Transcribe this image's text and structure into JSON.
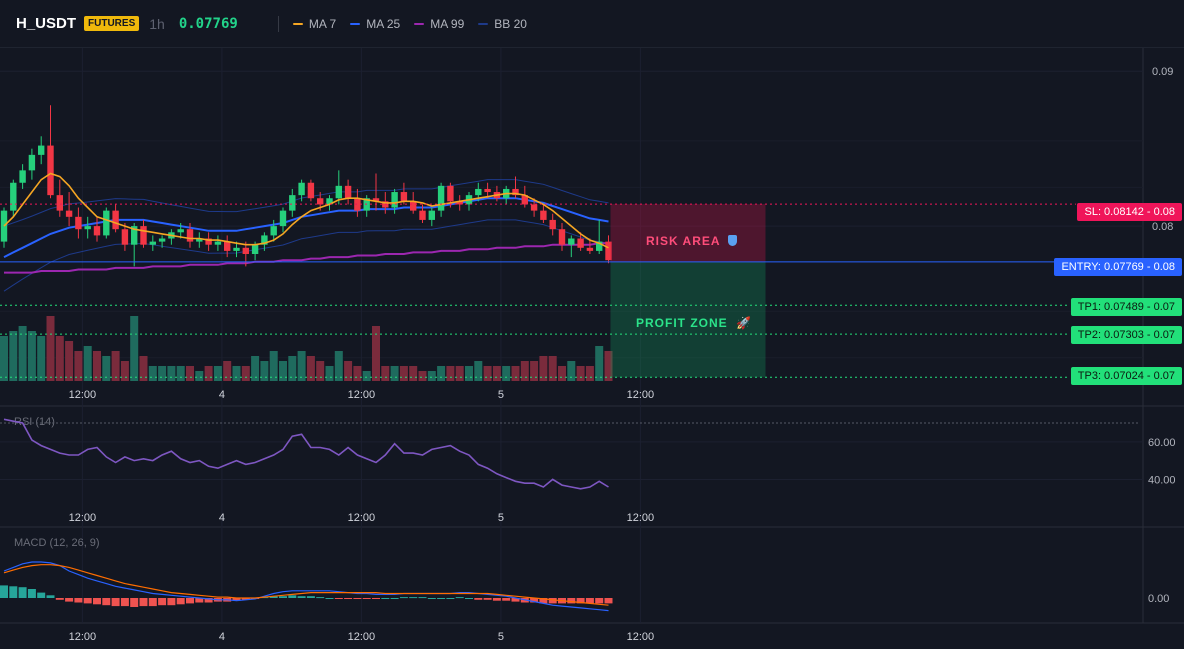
{
  "header": {
    "symbol": "H_USDT",
    "badge": "FUTURES",
    "timeframe": "1h",
    "price": "0.07769",
    "indicators": [
      {
        "label": "MA 7",
        "color": "#f5a623"
      },
      {
        "label": "MA 25",
        "color": "#2962ff"
      },
      {
        "label": "MA 99",
        "color": "#9c27b0"
      },
      {
        "label": "BB 20",
        "color": "#1e3a8a"
      }
    ]
  },
  "levels": {
    "sl": {
      "label": "SL: 0.08142 - 0.08",
      "value": 0.08142,
      "color": "#f0155a"
    },
    "entry": {
      "label": "ENTRY: 0.07769 - 0.08",
      "value": 0.07769,
      "color": "#2962ff"
    },
    "tp": [
      {
        "label": "TP1: 0.07489 - 0.07",
        "value": 0.07489
      },
      {
        "label": "TP2: 0.07303 - 0.07",
        "value": 0.07303
      },
      {
        "label": "TP3: 0.07024 - 0.07",
        "value": 0.07024
      }
    ],
    "tp_color": "#22e07a"
  },
  "zones": {
    "risk": "RISK AREA",
    "profit": "PROFIT ZONE"
  },
  "rsi": {
    "label": "RSI (14)",
    "ticks": [
      "60.00",
      "40.00"
    ],
    "ylim": [
      28,
      78
    ]
  },
  "macd": {
    "label": "MACD (12, 26, 9)",
    "ticks": [
      "0.00"
    ]
  },
  "chart_data": [
    {
      "type": "candlestick",
      "title": "H_USDT",
      "y_ticks": [
        "0.09",
        "0.08"
      ],
      "ylim": [
        0.07,
        0.0915
      ],
      "x_labels": [
        {
          "text": "12:00",
          "index": 8
        },
        {
          "text": "4",
          "index": 23
        },
        {
          "text": "12:00",
          "index": 38
        },
        {
          "text": "5",
          "index": 53
        },
        {
          "text": "12:00",
          "index": 68
        }
      ],
      "candles": [
        [
          0.079,
          0.0812,
          0.0786,
          0.081
        ],
        [
          0.081,
          0.083,
          0.0806,
          0.0828
        ],
        [
          0.0828,
          0.084,
          0.0824,
          0.0836
        ],
        [
          0.0836,
          0.085,
          0.083,
          0.0846
        ],
        [
          0.0846,
          0.0858,
          0.084,
          0.0852
        ],
        [
          0.0852,
          0.0878,
          0.0818,
          0.082
        ],
        [
          0.082,
          0.083,
          0.0806,
          0.081
        ],
        [
          0.081,
          0.0822,
          0.08,
          0.0806
        ],
        [
          0.0806,
          0.0812,
          0.0792,
          0.0798
        ],
        [
          0.0798,
          0.0806,
          0.0792,
          0.08
        ],
        [
          0.08,
          0.0806,
          0.079,
          0.0794
        ],
        [
          0.0794,
          0.0812,
          0.0792,
          0.081
        ],
        [
          0.081,
          0.0814,
          0.0796,
          0.0798
        ],
        [
          0.0798,
          0.0802,
          0.0784,
          0.0788
        ],
        [
          0.0788,
          0.0802,
          0.0774,
          0.08
        ],
        [
          0.08,
          0.0804,
          0.0786,
          0.0788
        ],
        [
          0.0788,
          0.0794,
          0.0784,
          0.079
        ],
        [
          0.079,
          0.0794,
          0.0786,
          0.0792
        ],
        [
          0.0792,
          0.0798,
          0.0788,
          0.0796
        ],
        [
          0.0796,
          0.0802,
          0.0792,
          0.0798
        ],
        [
          0.0798,
          0.0802,
          0.0786,
          0.079
        ],
        [
          0.079,
          0.0796,
          0.0786,
          0.0792
        ],
        [
          0.0792,
          0.0796,
          0.0784,
          0.0788
        ],
        [
          0.0788,
          0.0794,
          0.0784,
          0.079
        ],
        [
          0.079,
          0.0794,
          0.078,
          0.0784
        ],
        [
          0.0784,
          0.079,
          0.078,
          0.0786
        ],
        [
          0.0786,
          0.079,
          0.0774,
          0.0782
        ],
        [
          0.0782,
          0.079,
          0.0778,
          0.0788
        ],
        [
          0.0788,
          0.0796,
          0.0784,
          0.0794
        ],
        [
          0.0794,
          0.0804,
          0.079,
          0.08
        ],
        [
          0.08,
          0.0812,
          0.0796,
          0.081
        ],
        [
          0.081,
          0.0824,
          0.0806,
          0.082
        ],
        [
          0.082,
          0.083,
          0.0816,
          0.0828
        ],
        [
          0.0828,
          0.083,
          0.0816,
          0.0818
        ],
        [
          0.0818,
          0.0822,
          0.081,
          0.0814
        ],
        [
          0.0814,
          0.082,
          0.081,
          0.0818
        ],
        [
          0.0818,
          0.0836,
          0.0814,
          0.0826
        ],
        [
          0.0826,
          0.083,
          0.0814,
          0.0818
        ],
        [
          0.0818,
          0.0824,
          0.0806,
          0.081
        ],
        [
          0.081,
          0.082,
          0.0806,
          0.0818
        ],
        [
          0.0818,
          0.0834,
          0.081,
          0.0816
        ],
        [
          0.0816,
          0.0822,
          0.0808,
          0.0812
        ],
        [
          0.0812,
          0.0824,
          0.0808,
          0.0822
        ],
        [
          0.0822,
          0.0828,
          0.0814,
          0.0816
        ],
        [
          0.0816,
          0.0822,
          0.0808,
          0.081
        ],
        [
          0.081,
          0.0814,
          0.0802,
          0.0804
        ],
        [
          0.0804,
          0.0812,
          0.08,
          0.081
        ],
        [
          0.081,
          0.0828,
          0.0806,
          0.0826
        ],
        [
          0.0826,
          0.0828,
          0.0812,
          0.0816
        ],
        [
          0.0816,
          0.082,
          0.081,
          0.0814
        ],
        [
          0.0814,
          0.0822,
          0.081,
          0.082
        ],
        [
          0.082,
          0.0828,
          0.0816,
          0.0824
        ],
        [
          0.0824,
          0.0828,
          0.0818,
          0.0822
        ],
        [
          0.0822,
          0.0826,
          0.0816,
          0.0818
        ],
        [
          0.0818,
          0.0826,
          0.0814,
          0.0824
        ],
        [
          0.0824,
          0.0832,
          0.0818,
          0.082
        ],
        [
          0.082,
          0.0826,
          0.0812,
          0.0814
        ],
        [
          0.0814,
          0.0818,
          0.0806,
          0.081
        ],
        [
          0.081,
          0.0814,
          0.0802,
          0.0804
        ],
        [
          0.0804,
          0.0808,
          0.0794,
          0.0798
        ],
        [
          0.0798,
          0.0802,
          0.0784,
          0.0788
        ],
        [
          0.0788,
          0.0794,
          0.078,
          0.0792
        ],
        [
          0.0792,
          0.0796,
          0.0784,
          0.0786
        ],
        [
          0.0786,
          0.0792,
          0.0782,
          0.0784
        ],
        [
          0.0784,
          0.0804,
          0.0782,
          0.079
        ],
        [
          0.079,
          0.0794,
          0.0776,
          0.0778
        ]
      ],
      "ma7": [
        0.08,
        0.0806,
        0.0814,
        0.0822,
        0.083,
        0.0834,
        0.0832,
        0.0826,
        0.0818,
        0.0812,
        0.0806,
        0.0804,
        0.0802,
        0.08,
        0.0798,
        0.0797,
        0.0796,
        0.0795,
        0.0794,
        0.0793,
        0.0792,
        0.0792,
        0.0791,
        0.0791,
        0.079,
        0.0789,
        0.0788,
        0.0788,
        0.0789,
        0.0791,
        0.0795,
        0.0801,
        0.0806,
        0.081,
        0.0812,
        0.0814,
        0.0817,
        0.0818,
        0.0818,
        0.0817,
        0.0816,
        0.0815,
        0.0815,
        0.0816,
        0.0816,
        0.0815,
        0.0813,
        0.0814,
        0.0815,
        0.0816,
        0.0817,
        0.0818,
        0.0819,
        0.082,
        0.0821,
        0.0821,
        0.082,
        0.0817,
        0.0814,
        0.081,
        0.0805,
        0.08,
        0.0795,
        0.0791,
        0.0789,
        0.0786
      ],
      "ma25": [
        0.078,
        0.0783,
        0.0786,
        0.0789,
        0.0792,
        0.0795,
        0.0797,
        0.0799,
        0.08,
        0.0801,
        0.0802,
        0.0803,
        0.0804,
        0.0804,
        0.0804,
        0.0804,
        0.0803,
        0.0802,
        0.0801,
        0.08,
        0.0799,
        0.0798,
        0.0797,
        0.0797,
        0.0797,
        0.0797,
        0.0798,
        0.0799,
        0.08,
        0.0801,
        0.0802,
        0.0804,
        0.0806,
        0.0807,
        0.0808,
        0.0809,
        0.081,
        0.081,
        0.081,
        0.0811,
        0.0811,
        0.0811,
        0.0811,
        0.0812,
        0.0812,
        0.0812,
        0.0812,
        0.0813,
        0.0814,
        0.0815,
        0.0816,
        0.0817,
        0.0818,
        0.0818,
        0.0818,
        0.0818,
        0.0817,
        0.0816,
        0.0815,
        0.0813,
        0.0811,
        0.0809,
        0.0807,
        0.0805,
        0.0804,
        0.0803
      ],
      "ma99": [
        0.077,
        0.077,
        0.077,
        0.077,
        0.0771,
        0.0771,
        0.0771,
        0.0771,
        0.0772,
        0.0772,
        0.0772,
        0.0772,
        0.0773,
        0.0773,
        0.0773,
        0.0773,
        0.0774,
        0.0774,
        0.0774,
        0.0774,
        0.0775,
        0.0775,
        0.0775,
        0.0775,
        0.0776,
        0.0776,
        0.0776,
        0.0777,
        0.0777,
        0.0777,
        0.0778,
        0.0778,
        0.0778,
        0.0779,
        0.0779,
        0.078,
        0.078,
        0.078,
        0.0781,
        0.0781,
        0.0781,
        0.0782,
        0.0782,
        0.0782,
        0.0783,
        0.0783,
        0.0783,
        0.0784,
        0.0784,
        0.0784,
        0.0785,
        0.0785,
        0.0785,
        0.0786,
        0.0786,
        0.0786,
        0.0787,
        0.0787,
        0.0787,
        0.0788,
        0.0788,
        0.0788,
        0.0788,
        0.0788,
        0.0789,
        0.0789
      ],
      "volume": [
        0.9,
        1.0,
        1.1,
        1.0,
        0.9,
        1.3,
        0.9,
        0.8,
        0.6,
        0.7,
        0.6,
        0.5,
        0.6,
        0.4,
        1.3,
        0.5,
        0.3,
        0.3,
        0.3,
        0.3,
        0.3,
        0.2,
        0.3,
        0.3,
        0.4,
        0.3,
        0.3,
        0.5,
        0.4,
        0.6,
        0.4,
        0.5,
        0.6,
        0.5,
        0.4,
        0.3,
        0.6,
        0.4,
        0.3,
        0.2,
        1.1,
        0.3,
        0.3,
        0.3,
        0.3,
        0.2,
        0.2,
        0.3,
        0.3,
        0.3,
        0.3,
        0.4,
        0.3,
        0.3,
        0.3,
        0.3,
        0.4,
        0.4,
        0.5,
        0.5,
        0.3,
        0.4,
        0.3,
        0.3,
        0.7,
        0.6
      ]
    },
    {
      "type": "line",
      "title": "RSI (14)",
      "values": [
        72,
        71,
        70,
        61,
        58,
        56,
        54,
        53,
        53,
        56,
        57,
        52,
        49,
        52,
        50,
        51,
        50,
        53,
        55,
        51,
        49,
        50,
        47,
        46,
        48,
        50,
        48,
        49,
        51,
        53,
        56,
        63,
        64,
        57,
        57,
        56,
        53,
        57,
        53,
        51,
        49,
        53,
        59,
        54,
        54,
        53,
        56,
        57,
        58,
        55,
        53,
        48,
        46,
        43,
        41,
        39,
        38,
        38,
        36,
        40,
        37,
        36,
        35,
        36,
        39,
        36
      ]
    },
    {
      "type": "bar",
      "title": "MACD (12, 26, 9)",
      "histogram": [
        0.0014,
        0.0013,
        0.0012,
        0.001,
        0.0006,
        0.0003,
        -0.0002,
        -0.0004,
        -0.0005,
        -0.0006,
        -0.0007,
        -0.0008,
        -0.0009,
        -0.0009,
        -0.001,
        -0.0009,
        -0.0009,
        -0.0008,
        -0.0008,
        -0.0007,
        -0.0006,
        -0.0005,
        -0.0005,
        -0.0004,
        -0.0004,
        -0.0003,
        -0.0002,
        -0.0001,
        0.0001,
        0.0002,
        0.0002,
        0.0003,
        0.0002,
        0.0002,
        0.0001,
        0.0,
        -0.0001,
        -0.0001,
        -0.0001,
        -0.0001,
        -0.0001,
        0.0,
        0.0,
        0.0001,
        0.0001,
        0.0001,
        0.0,
        0.0,
        0.0,
        0.0001,
        0.0,
        -0.0002,
        -0.0002,
        -0.0003,
        -0.0003,
        -0.0004,
        -0.0005,
        -0.0005,
        -0.0006,
        -0.0006,
        -0.0006,
        -0.0006,
        -0.0006,
        -0.0006,
        -0.0006,
        -0.0006
      ],
      "macd": [
        0.003,
        0.0034,
        0.0038,
        0.004,
        0.004,
        0.0039,
        0.0036,
        0.003,
        0.0026,
        0.0022,
        0.0019,
        0.0016,
        0.0013,
        0.0011,
        0.0009,
        0.0007,
        0.0005,
        0.0004,
        0.0003,
        0.0002,
        0.0001,
        0.0,
        -0.0001,
        -0.0002,
        -0.0002,
        -0.0003,
        -0.0002,
        -0.0001,
        0.0002,
        0.0005,
        0.0007,
        0.0008,
        0.0008,
        0.0008,
        0.0008,
        0.0008,
        0.0007,
        0.0006,
        0.0005,
        0.0005,
        0.0004,
        0.0004,
        0.0004,
        0.0005,
        0.0005,
        0.0005,
        0.0005,
        0.0005,
        0.0005,
        0.0006,
        0.0006,
        0.0005,
        0.0004,
        0.0003,
        0.0002,
        0.0,
        -0.0002,
        -0.0004,
        -0.0006,
        -0.0008,
        -0.0009,
        -0.001,
        -0.0011,
        -0.0012,
        -0.0013,
        -0.0014
      ],
      "signal": [
        0.0028,
        0.0031,
        0.0034,
        0.0036,
        0.0037,
        0.0037,
        0.0036,
        0.0034,
        0.0031,
        0.0028,
        0.0025,
        0.0022,
        0.0019,
        0.0016,
        0.0014,
        0.0012,
        0.001,
        0.0008,
        0.0006,
        0.0005,
        0.0004,
        0.0003,
        0.0002,
        0.0001,
        0.0001,
        0.0,
        0.0,
        0.0,
        0.0001,
        0.0002,
        0.0003,
        0.0004,
        0.0005,
        0.0006,
        0.0006,
        0.0006,
        0.0006,
        0.0006,
        0.0006,
        0.0006,
        0.0006,
        0.0005,
        0.0005,
        0.0005,
        0.0005,
        0.0005,
        0.0005,
        0.0005,
        0.0005,
        0.0005,
        0.0005,
        0.0005,
        0.0005,
        0.0004,
        0.0003,
        0.0002,
        0.0001,
        0.0,
        -0.0001,
        -0.0002,
        -0.0003,
        -0.0004,
        -0.0005,
        -0.0006,
        -0.0007,
        -0.0008
      ]
    }
  ]
}
